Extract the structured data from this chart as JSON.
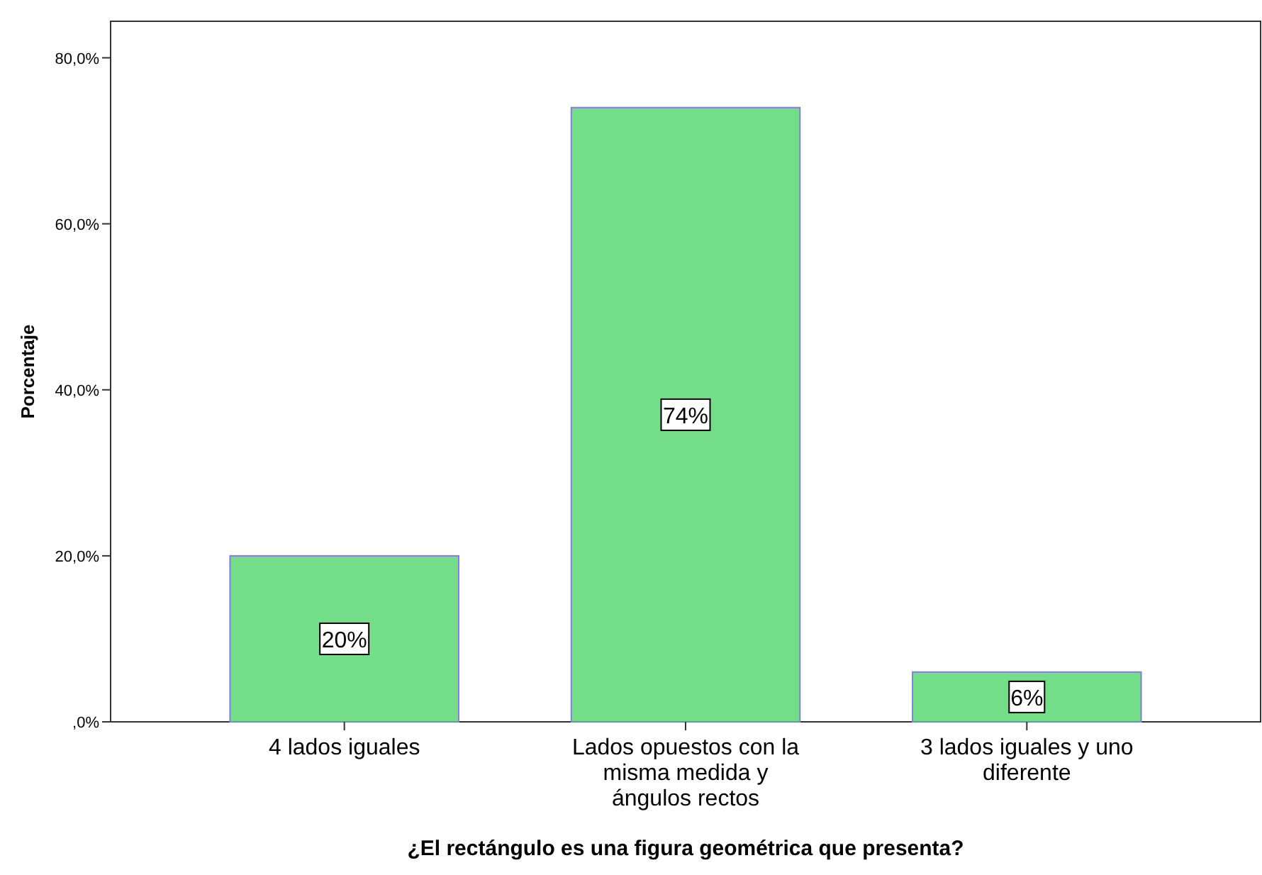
{
  "chart_data": {
    "type": "bar",
    "xlabel": "¿El rectángulo es una figura geométrica que presenta?",
    "ylabel": "Porcentaje",
    "categories": [
      "4 lados iguales",
      "Lados opuestos con la misma medida y ángulos rectos",
      "3 lados iguales y uno diferente"
    ],
    "values": [
      20,
      74,
      6
    ],
    "value_labels": [
      "20%",
      "74%",
      "6%"
    ],
    "color": "#73de87",
    "ylim": [
      0,
      84.4
    ],
    "yticks": [
      {
        "value": 0,
        "label": ",0%"
      },
      {
        "value": 20,
        "label": "20,0%"
      },
      {
        "value": 40,
        "label": "40,0%"
      },
      {
        "value": 60,
        "label": "60,0%"
      },
      {
        "value": 80,
        "label": "80,0%"
      }
    ],
    "grid": false
  }
}
